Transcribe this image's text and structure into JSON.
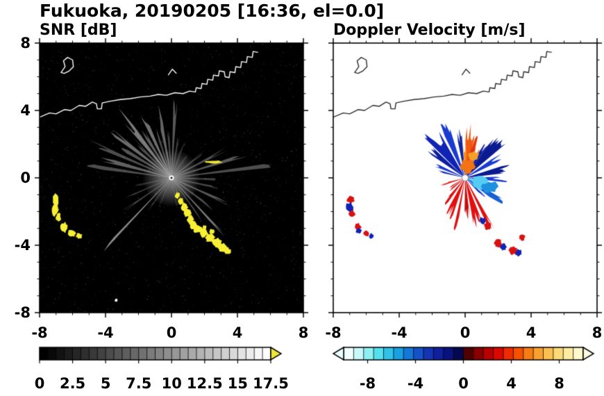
{
  "title": "Fukuoka, 20190205 [16:36, el=0.0]",
  "chart_data": {
    "type": "heatmap",
    "kind": "radar-ppi-pair",
    "x": {
      "lim": [
        -8,
        8
      ],
      "major_ticks": [
        -8,
        -4,
        0,
        4,
        8
      ],
      "tick_labels": [
        "-8",
        "-4",
        "0",
        "4",
        "8"
      ]
    },
    "y": {
      "lim": [
        -8,
        8
      ],
      "major_ticks": [
        8,
        4,
        0,
        -4,
        -8
      ],
      "tick_labels": [
        "8",
        "4",
        "0",
        "-4",
        "-8"
      ]
    },
    "coastline": {
      "main": [
        [
          -8,
          3.6
        ],
        [
          -7.4,
          3.85
        ],
        [
          -7.0,
          3.8
        ],
        [
          -6.5,
          4.05
        ],
        [
          -6.1,
          4.0
        ],
        [
          -5.6,
          4.3
        ],
        [
          -5.2,
          4.25
        ],
        [
          -4.8,
          4.5
        ],
        [
          -4.55,
          4.4
        ],
        [
          -4.5,
          4.1
        ],
        [
          -4.25,
          4.1
        ],
        [
          -4.2,
          4.45
        ],
        [
          -3.7,
          4.55
        ],
        [
          -3.1,
          4.65
        ],
        [
          -2.5,
          4.7
        ],
        [
          -1.9,
          4.8
        ],
        [
          -1.3,
          4.85
        ],
        [
          -0.8,
          4.95
        ],
        [
          -0.3,
          4.9
        ],
        [
          0.2,
          5.05
        ],
        [
          0.7,
          5.0
        ],
        [
          1.1,
          5.15
        ],
        [
          1.45,
          5.1
        ],
        [
          1.5,
          5.35
        ],
        [
          1.8,
          5.3
        ],
        [
          1.85,
          5.6
        ],
        [
          2.15,
          5.55
        ],
        [
          2.2,
          5.85
        ],
        [
          2.5,
          5.8
        ],
        [
          2.55,
          6.1
        ],
        [
          2.85,
          6.05
        ],
        [
          2.9,
          6.35
        ],
        [
          3.2,
          6.3
        ],
        [
          3.25,
          6.0
        ],
        [
          3.5,
          5.95
        ],
        [
          3.55,
          6.3
        ],
        [
          3.85,
          6.25
        ],
        [
          3.9,
          6.6
        ],
        [
          4.2,
          6.55
        ],
        [
          4.25,
          6.9
        ],
        [
          4.55,
          6.85
        ],
        [
          4.6,
          7.2
        ],
        [
          4.9,
          7.15
        ],
        [
          4.95,
          7.5
        ],
        [
          5.25,
          7.45
        ]
      ],
      "island": [
        [
          -6.7,
          6.25
        ],
        [
          -6.45,
          6.6
        ],
        [
          -6.55,
          6.95
        ],
        [
          -6.3,
          7.15
        ],
        [
          -6.0,
          7.0
        ],
        [
          -5.95,
          6.6
        ],
        [
          -6.2,
          6.35
        ],
        [
          -6.5,
          6.2
        ]
      ],
      "mark": [
        [
          -0.2,
          6.1
        ],
        [
          0.05,
          6.45
        ],
        [
          0.3,
          6.2
        ]
      ]
    },
    "panels": [
      {
        "id": "snr",
        "title": "SNR [dB]",
        "bg": "#000000",
        "coast_color": "#ffffff",
        "beams": [
          [
            172,
            5.0,
            3,
            0.3
          ],
          [
            165,
            4.0,
            4,
            0.38
          ],
          [
            157,
            5.3,
            3,
            0.3
          ],
          [
            150,
            3.4,
            4,
            0.33
          ],
          [
            143,
            4.6,
            4,
            0.42
          ],
          [
            136,
            3.1,
            4,
            0.3
          ],
          [
            129,
            4.8,
            5,
            0.48
          ],
          [
            122,
            3.5,
            4,
            0.36
          ],
          [
            115,
            4.3,
            4,
            0.44
          ],
          [
            108,
            2.9,
            3,
            0.3
          ],
          [
            101,
            3.9,
            4,
            0.4
          ],
          [
            94,
            2.7,
            3,
            0.28
          ],
          [
            87,
            4.2,
            3,
            0.34
          ],
          [
            80,
            2.5,
            3,
            0.24
          ],
          [
            70,
            2.1,
            3,
            0.2
          ],
          [
            55,
            1.8,
            3,
            0.18
          ],
          [
            38,
            2.4,
            3,
            0.26
          ],
          [
            27,
            3.6,
            3,
            0.32
          ],
          [
            17,
            4.6,
            3,
            0.34
          ],
          [
            7,
            5.8,
            2.5,
            0.3
          ],
          [
            -2,
            3.2,
            3,
            0.26
          ],
          [
            -12,
            2.7,
            3,
            0.28
          ],
          [
            -24,
            3.6,
            3,
            0.34
          ],
          [
            -36,
            2.9,
            3,
            0.3
          ],
          [
            -47,
            4.3,
            2,
            0.46
          ],
          [
            -54,
            3.1,
            2,
            0.3
          ],
          [
            -66,
            2.3,
            2,
            0.22
          ],
          [
            -79,
            1.9,
            2,
            0.18
          ],
          [
            192,
            2.1,
            3,
            0.18
          ],
          [
            203,
            2.7,
            2,
            0.24
          ],
          [
            214,
            3.3,
            2,
            0.28
          ],
          [
            226,
            5.5,
            1.5,
            0.55
          ],
          [
            234,
            2.5,
            2,
            0.24
          ],
          [
            246,
            1.9,
            2,
            0.18
          ]
        ],
        "blobs": [
          [
            -7.0,
            -1.3,
            0.18,
            0.38,
            "#f6ef35"
          ],
          [
            -7.05,
            -1.85,
            0.2,
            0.42,
            "#f6ef35"
          ],
          [
            -6.85,
            -2.35,
            0.15,
            0.28,
            "#f6ef35"
          ],
          [
            -6.5,
            -2.95,
            0.23,
            0.3,
            "#f6ef35"
          ],
          [
            -6.05,
            -3.3,
            0.27,
            0.22,
            "#f6ef35"
          ],
          [
            -5.6,
            -3.45,
            0.19,
            0.16,
            "#f6ef35"
          ],
          [
            0.35,
            -1.05,
            0.14,
            0.2,
            "#f6ef35"
          ],
          [
            0.55,
            -1.4,
            0.17,
            0.24,
            "#f6ef35"
          ],
          [
            0.8,
            -1.75,
            0.2,
            0.26,
            "#f6ef35"
          ],
          [
            1.0,
            -2.1,
            0.22,
            0.26,
            "#f6ef35"
          ],
          [
            1.15,
            -2.5,
            0.2,
            0.28,
            "#f6ef35"
          ],
          [
            1.35,
            -2.8,
            0.22,
            0.26,
            "#f6ef35"
          ],
          [
            1.6,
            -3.05,
            0.26,
            0.24,
            "#f6ef35"
          ],
          [
            1.95,
            -3.3,
            0.26,
            0.24,
            "#f6ef35"
          ],
          [
            2.35,
            -3.55,
            0.3,
            0.26,
            "#f6ef35"
          ],
          [
            2.75,
            -3.85,
            0.32,
            0.28,
            "#f6ef35"
          ],
          [
            3.1,
            -4.15,
            0.28,
            0.26,
            "#f6ef35"
          ],
          [
            3.4,
            -4.35,
            0.2,
            0.2,
            "#f6ef35"
          ],
          [
            2.0,
            -2.95,
            0.14,
            0.14,
            "#f6ef35"
          ],
          [
            2.45,
            -3.2,
            0.16,
            0.15,
            "#f6ef35"
          ],
          [
            2.55,
            0.95,
            0.5,
            0.09,
            "#f0e838"
          ],
          [
            -3.35,
            -7.25,
            0.1,
            0.1,
            "#ffffff"
          ]
        ],
        "colorbar": {
          "range": [
            0,
            17.5
          ],
          "segments": 28,
          "values": [
            0,
            2.5,
            5,
            7.5,
            10,
            12.5,
            15,
            17.5
          ],
          "labels": [
            "0",
            "2.5",
            "5",
            "7.5",
            "10",
            "12.5",
            "15",
            "17.5"
          ],
          "over_color": "#eee63a"
        }
      },
      {
        "id": "doppler",
        "title": "Doppler Velocity [m/s]",
        "bg": "#ffffff",
        "coast_color": "#2a2a2a",
        "wedges": [
          [
            128,
            3.3,
            16,
            "#1023b4"
          ],
          [
            112,
            3.6,
            9,
            "#1b3bd0"
          ],
          [
            142,
            2.7,
            9,
            "#0c1ea0"
          ],
          [
            157,
            2.3,
            6,
            "#1b3bd0"
          ],
          [
            166,
            1.6,
            4,
            "#0c1ea0"
          ],
          [
            98,
            2.9,
            7,
            "#10249c"
          ],
          [
            83,
            2.9,
            13,
            "#f05a10"
          ],
          [
            74,
            2.3,
            9,
            "#e53410"
          ],
          [
            90,
            1.9,
            7,
            "#f58e1d"
          ],
          [
            65,
            1.7,
            6,
            "#f07316"
          ],
          [
            47,
            2.9,
            15,
            "#0a1a90"
          ],
          [
            30,
            2.5,
            9,
            "#1b3bd0"
          ],
          [
            58,
            2.1,
            7,
            "#0c1ea0"
          ],
          [
            12,
            2.7,
            11,
            "#0a1a90"
          ],
          [
            -2,
            2.3,
            8,
            "#1b3bd0"
          ],
          [
            -16,
            1.7,
            9,
            "#5bd1f2"
          ],
          [
            -24,
            2.0,
            12,
            "#2fa8ea"
          ],
          [
            -33,
            2.4,
            9,
            "#1b5fd6"
          ],
          [
            -44,
            1.6,
            6,
            "#1b3bd0"
          ],
          [
            -62,
            3.3,
            5,
            "#dc1010"
          ],
          [
            -74,
            2.7,
            11,
            "#e01010"
          ],
          [
            -87,
            2.2,
            8,
            "#c40d0d"
          ],
          [
            -101,
            3.0,
            4,
            "#dc1010"
          ],
          [
            -114,
            2.4,
            11,
            "#e01010"
          ],
          [
            -129,
            1.8,
            7,
            "#d91111"
          ],
          [
            -142,
            1.2,
            5,
            "#c40d0d"
          ],
          [
            196,
            1.4,
            5,
            "#dc1010"
          ],
          [
            211,
            1.1,
            4,
            "#d91111"
          ]
        ],
        "center_blobs": [
          [
            0.2,
            0.7,
            0.45,
            0.4,
            "#f07316"
          ],
          [
            0.5,
            1.3,
            0.35,
            0.3,
            "#f2a029"
          ],
          [
            0.9,
            -0.35,
            0.5,
            0.4,
            "#55cdf0"
          ],
          [
            1.5,
            -0.55,
            0.45,
            0.35,
            "#1e90e0"
          ]
        ],
        "blobs": [
          [
            -6.95,
            -1.3,
            0.22,
            "#d91111"
          ],
          [
            -7.0,
            -1.75,
            0.26,
            "#1023b4"
          ],
          [
            -6.85,
            -2.15,
            0.2,
            "#d91111"
          ],
          [
            -6.5,
            -2.9,
            0.2,
            "#d91111"
          ],
          [
            -6.45,
            -3.15,
            0.16,
            "#1023b4"
          ],
          [
            -6.0,
            -3.3,
            0.18,
            "#d91111"
          ],
          [
            -5.7,
            -3.45,
            0.15,
            "#1023b4"
          ],
          [
            1.05,
            -2.55,
            0.2,
            "#1023b4"
          ],
          [
            1.35,
            -2.85,
            0.22,
            "#d91111"
          ],
          [
            2.0,
            -3.9,
            0.24,
            "#d91111"
          ],
          [
            2.3,
            -4.1,
            0.2,
            "#1023b4"
          ],
          [
            2.9,
            -4.3,
            0.27,
            "#d91111"
          ],
          [
            3.25,
            -4.45,
            0.2,
            "#1023b4"
          ],
          [
            3.45,
            -3.55,
            0.18,
            "#d91111"
          ]
        ],
        "colorbar": {
          "range": [
            -10,
            10
          ],
          "values": [
            -8,
            -4,
            0,
            4,
            8
          ],
          "labels": [
            "-8",
            "-4",
            "0",
            "4",
            "8"
          ],
          "segment_colors": [
            "#f2ffff",
            "#c8f8fa",
            "#8ff0f4",
            "#55e0ee",
            "#30c2e8",
            "#18a0e0",
            "#1478d8",
            "#1452c8",
            "#1434b4",
            "#10209c",
            "#0a1280",
            "#050850",
            "#500000",
            "#880000",
            "#b80000",
            "#dc0800",
            "#ee2c00",
            "#f55200",
            "#f87c14",
            "#faa030",
            "#fcc050",
            "#fdda78",
            "#feeca0",
            "#fff8cc"
          ],
          "under_color": "#eaffff",
          "over_color": "#fffbe0"
        }
      }
    ]
  }
}
